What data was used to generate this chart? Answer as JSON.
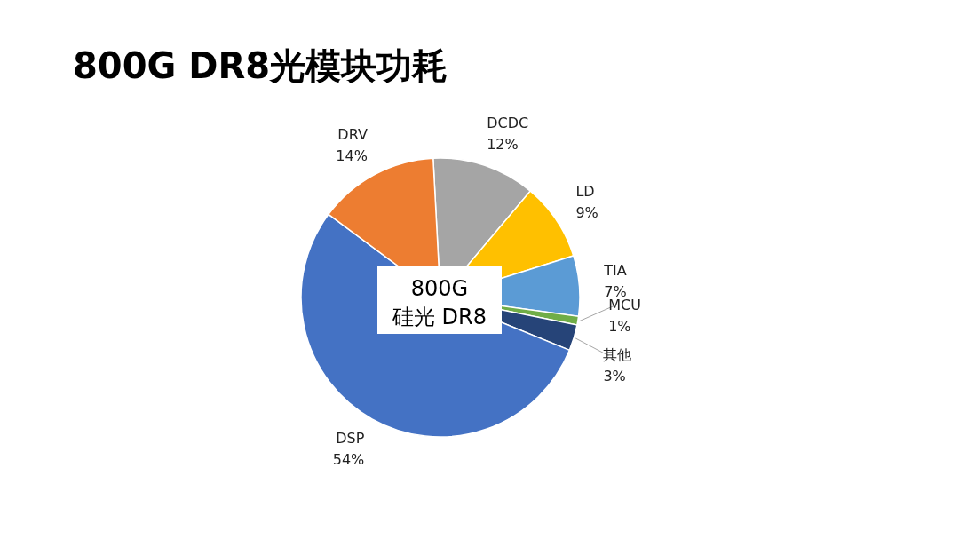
{
  "chart_data": {
    "type": "pie",
    "title": "800G DR8光模块功耗",
    "categories": [
      "DCDC",
      "LD",
      "TIA",
      "MCU",
      "其他",
      "DSP",
      "DRV"
    ],
    "values": [
      12,
      9,
      7,
      1,
      3,
      54,
      14
    ],
    "value_labels": [
      "12%",
      "9%",
      "7%",
      "1%",
      "3%",
      "54%",
      "14%"
    ],
    "colors": [
      "#a5a5a5",
      "#ffc000",
      "#5b9bd5",
      "#70ad47",
      "#264478",
      "#4472c4",
      "#ed7d31"
    ],
    "annotations": [
      "800G\n硅光 DR8"
    ]
  }
}
